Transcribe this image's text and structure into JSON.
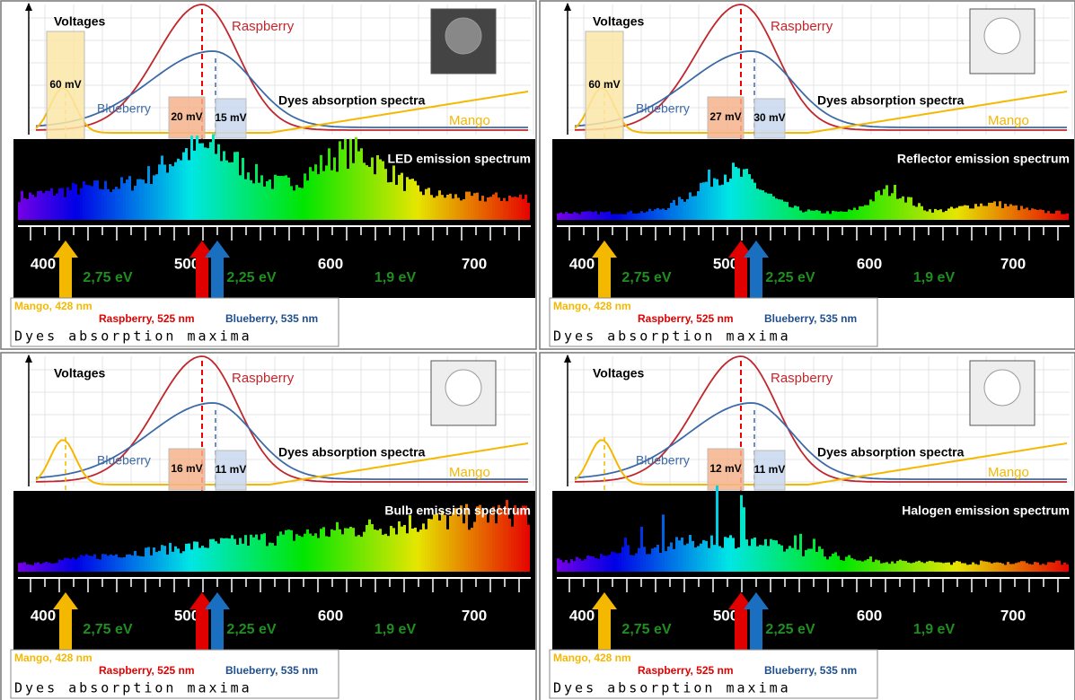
{
  "panels": [
    {
      "voltages_label": "Voltages",
      "raspberry_label": "Raspberry",
      "blueberry_label": "Blueberry",
      "mango_label": "Mango",
      "absorption_label": "Dyes absorption spectra",
      "emission_label": "LED emission spectrum",
      "voltage_boxes": {
        "mango": "60 mV",
        "raspberry": "20 mV",
        "blueberry": "15 mV"
      },
      "scale": [
        "400",
        "500",
        "600",
        "700"
      ],
      "energies": [
        "2,75 eV",
        "2,25 eV",
        "1,9 eV"
      ],
      "maxima": {
        "mango": "Mango, 428 nm",
        "raspberry": "Raspberry, 525 nm",
        "blueberry": "Blueberry, 535 nm",
        "title": "Dyes absorption maxima"
      }
    },
    {
      "voltages_label": "Voltages",
      "raspberry_label": "Raspberry",
      "blueberry_label": "Blueberry",
      "mango_label": "Mango",
      "absorption_label": "Dyes absorption spectra",
      "emission_label": "Reflector emission spectrum",
      "voltage_boxes": {
        "mango": "60 mV",
        "raspberry": "27 mV",
        "blueberry": "30 mV"
      },
      "scale": [
        "400",
        "500",
        "600",
        "700"
      ],
      "energies": [
        "2,75 eV",
        "2,25 eV",
        "1,9 eV"
      ],
      "maxima": {
        "mango": "Mango, 428 nm",
        "raspberry": "Raspberry, 525 nm",
        "blueberry": "Blueberry, 535 nm",
        "title": "Dyes absorption maxima"
      }
    },
    {
      "voltages_label": "Voltages",
      "raspberry_label": "Raspberry",
      "blueberry_label": "Blueberry",
      "mango_label": "Mango",
      "absorption_label": "Dyes absorption spectra",
      "emission_label": "Bulb emission spectrum",
      "voltage_boxes": {
        "raspberry": "16 mV",
        "blueberry": "11 mV"
      },
      "scale": [
        "400",
        "500",
        "600",
        "700"
      ],
      "energies": [
        "2,75 eV",
        "2,25 eV",
        "1,9 eV"
      ],
      "maxima": {
        "mango": "Mango, 428 nm",
        "raspberry": "Raspberry, 525 nm",
        "blueberry": "Blueberry, 535 nm",
        "title": "Dyes absorption maxima"
      }
    },
    {
      "voltages_label": "Voltages",
      "raspberry_label": "Raspberry",
      "blueberry_label": "Blueberry",
      "mango_label": "Mango",
      "absorption_label": "Dyes absorption spectra",
      "emission_label": "Halogen emission spectrum",
      "voltage_boxes": {
        "raspberry": "12 mV",
        "blueberry": "11 mV"
      },
      "scale": [
        "400",
        "500",
        "600",
        "700"
      ],
      "energies": [
        "2,75 eV",
        "2,25 eV",
        "1,9 eV"
      ],
      "maxima": {
        "mango": "Mango, 428 nm",
        "raspberry": "Raspberry, 525 nm",
        "blueberry": "Blueberry, 535 nm",
        "title": "Dyes absorption maxima"
      }
    }
  ]
}
